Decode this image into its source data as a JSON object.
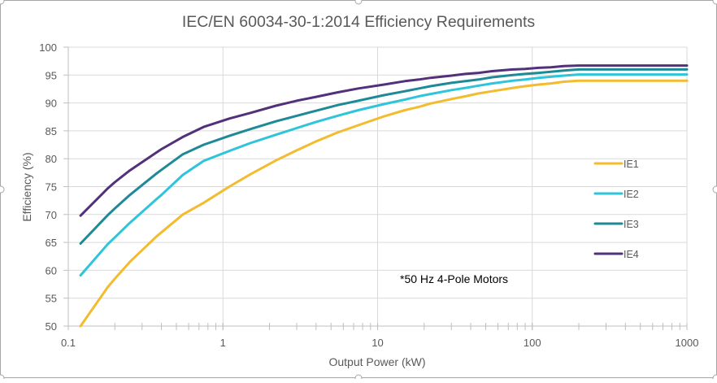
{
  "chart_data": {
    "type": "line",
    "title": "IEC/EN 60034-30-1:2014 Efficiency Requirements",
    "xlabel": "Output Power (kW)",
    "ylabel": "Efficiency (%)",
    "x_scale": "log",
    "xlim": [
      0.1,
      1000
    ],
    "ylim": [
      50,
      100
    ],
    "x_ticks": [
      0.1,
      1,
      10,
      100,
      1000
    ],
    "x_tick_labels": [
      "0.1",
      "1",
      "10",
      "100",
      "1000"
    ],
    "y_ticks": [
      50,
      55,
      60,
      65,
      70,
      75,
      80,
      85,
      90,
      95,
      100
    ],
    "y_tick_labels": [
      "50",
      "55",
      "60",
      "65",
      "70",
      "75",
      "80",
      "85",
      "90",
      "95",
      "100"
    ],
    "grid": true,
    "legend_position": "right",
    "annotation": "*50 Hz 4-Pole Motors",
    "x": [
      0.12,
      0.18,
      0.2,
      0.25,
      0.37,
      0.4,
      0.55,
      0.75,
      1.1,
      1.5,
      2.2,
      3,
      4,
      5.5,
      7.5,
      11,
      15,
      18.5,
      22,
      30,
      37,
      45,
      55,
      75,
      90,
      110,
      132,
      160,
      200,
      250,
      315,
      355,
      400,
      450,
      500,
      1000
    ],
    "series": [
      {
        "name": "IE1",
        "color": "#F2BC2E",
        "values": [
          50.0,
          57.0,
          58.5,
          61.5,
          66.0,
          66.8,
          70.0,
          72.1,
          75.0,
          77.2,
          79.7,
          81.5,
          83.1,
          84.7,
          86.0,
          87.6,
          88.7,
          89.3,
          89.9,
          90.7,
          91.2,
          91.7,
          92.1,
          92.7,
          93.0,
          93.3,
          93.5,
          93.8,
          94.0,
          94.0,
          94.0,
          94.0,
          94.0,
          94.0,
          94.0,
          94.0
        ]
      },
      {
        "name": "IE2",
        "color": "#2EC4DA",
        "values": [
          59.1,
          64.7,
          65.9,
          68.5,
          72.7,
          73.5,
          77.1,
          79.6,
          81.4,
          82.8,
          84.3,
          85.5,
          86.6,
          87.7,
          88.7,
          89.8,
          90.6,
          91.2,
          91.6,
          92.3,
          92.7,
          93.1,
          93.5,
          94.0,
          94.2,
          94.5,
          94.7,
          94.9,
          95.1,
          95.1,
          95.1,
          95.1,
          95.1,
          95.1,
          95.1,
          95.1
        ]
      },
      {
        "name": "IE3",
        "color": "#1F8A97",
        "values": [
          64.8,
          69.9,
          71.1,
          73.5,
          77.3,
          78.0,
          80.8,
          82.5,
          84.1,
          85.3,
          86.7,
          87.7,
          88.6,
          89.6,
          90.4,
          91.4,
          92.1,
          92.6,
          93.0,
          93.6,
          93.9,
          94.2,
          94.6,
          95.0,
          95.2,
          95.4,
          95.6,
          95.8,
          96.0,
          96.0,
          96.0,
          96.0,
          96.0,
          96.0,
          96.0,
          96.0
        ]
      },
      {
        "name": "IE4",
        "color": "#52307A",
        "values": [
          69.8,
          74.7,
          75.8,
          77.9,
          81.1,
          81.7,
          83.9,
          85.7,
          87.2,
          88.2,
          89.5,
          90.4,
          91.1,
          91.9,
          92.6,
          93.3,
          93.9,
          94.2,
          94.5,
          94.9,
          95.2,
          95.4,
          95.7,
          96.0,
          96.1,
          96.3,
          96.4,
          96.6,
          96.7,
          96.7,
          96.7,
          96.7,
          96.7,
          96.7,
          96.7,
          96.7
        ]
      }
    ]
  }
}
